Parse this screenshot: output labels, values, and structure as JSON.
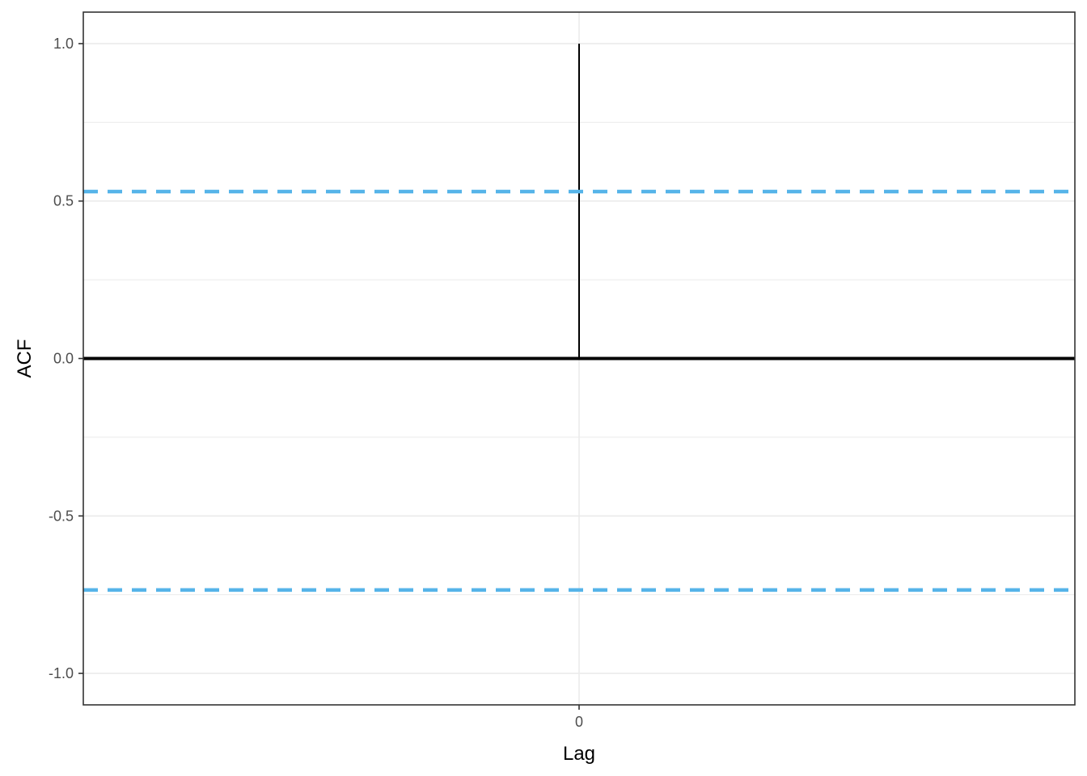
{
  "chart_data": {
    "type": "bar",
    "xlabel": "Lag",
    "ylabel": "ACF",
    "x_ticks": [
      0
    ],
    "y_ticks": [
      -1.0,
      -0.5,
      0.0,
      0.5,
      1.0
    ],
    "y_tick_labels": [
      "-1.0",
      "-0.5",
      "0.0",
      "0.5",
      "1.0"
    ],
    "x_tick_labels": [
      "0"
    ],
    "xlim": [
      -1,
      1
    ],
    "ylim": [
      -1.1,
      1.1
    ],
    "grid": true,
    "lags": [
      0
    ],
    "acf": [
      1.0
    ],
    "confidence_bounds": {
      "upper": 0.53,
      "lower": -0.735
    },
    "colors": {
      "bar": "#000000",
      "bound": "#56B4E9",
      "grid": "#ebebeb",
      "frame": "#333333"
    }
  }
}
